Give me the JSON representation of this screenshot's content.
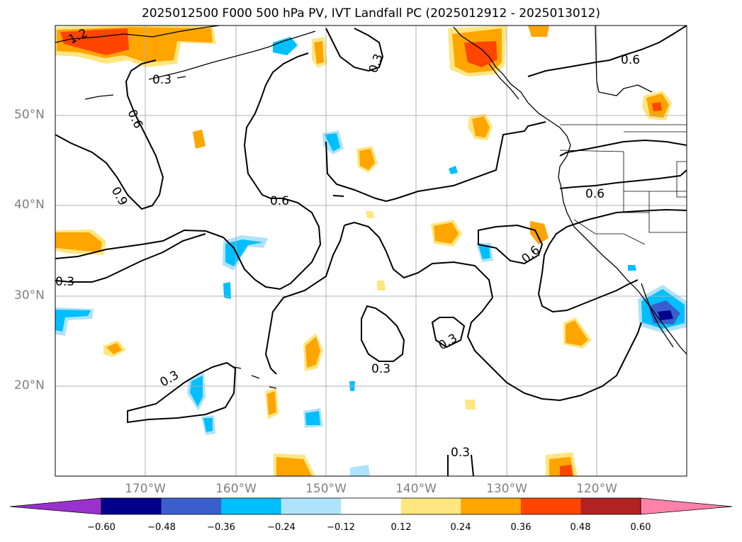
{
  "title": "2025012500 F000 500 hPa PV, IVT Landfall PC (2025012912 - 2025013012)",
  "lat_labels": [
    {
      "text": "50°N",
      "lat": 50
    },
    {
      "text": "40°N",
      "lat": 40
    },
    {
      "text": "30°N",
      "lat": 30
    },
    {
      "text": "20°N",
      "lat": 20
    }
  ],
  "lon_labels": [
    {
      "text": "170°W",
      "lon": -170
    },
    {
      "text": "160°W",
      "lon": -160
    },
    {
      "text": "150°W",
      "lon": -150
    },
    {
      "text": "140°W",
      "lon": -140
    },
    {
      "text": "130°W",
      "lon": -130
    },
    {
      "text": "120°W",
      "lon": -120
    }
  ],
  "contour_labels": [
    "1.2",
    "0.3",
    "0.6",
    "0.9",
    "0.6",
    "0.3",
    "0.3",
    "0.6",
    "0.6",
    "0.6",
    "0.3",
    "0.3",
    "0.3",
    "0.3"
  ],
  "colorbar": {
    "ticks": [
      "−0.60",
      "−0.48",
      "−0.36",
      "−0.24",
      "−0.12",
      "0.12",
      "0.24",
      "0.36",
      "0.48",
      "0.60"
    ],
    "colors": [
      "#9932cc",
      "#00008b",
      "#3a5fcd",
      "#00bfff",
      "#afe3fb",
      "#ffffff",
      "#ffe680",
      "#ffa500",
      "#ff4500",
      "#b22222",
      "#ff82ab"
    ]
  },
  "colors": {
    "grid": "#b0b0b0",
    "contour": "#000000",
    "label_gray": "#808080"
  }
}
